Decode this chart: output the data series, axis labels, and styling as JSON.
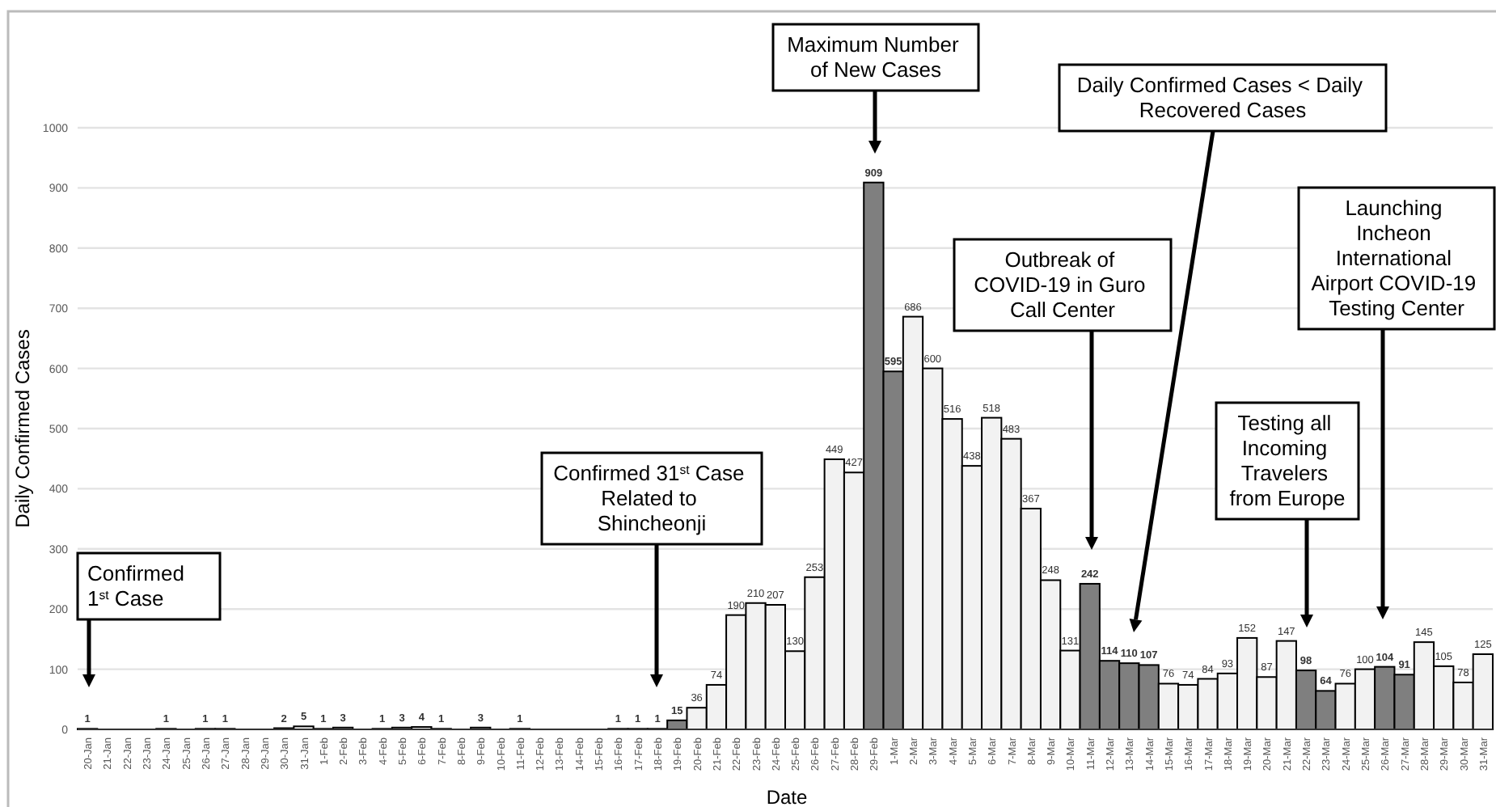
{
  "chart_data": {
    "type": "bar",
    "xlabel": "Date",
    "ylabel": "Daily Confirmed Cases",
    "categories": [
      "20-Jan",
      "21-Jan",
      "22-Jan",
      "23-Jan",
      "24-Jan",
      "25-Jan",
      "26-Jan",
      "27-Jan",
      "28-Jan",
      "29-Jan",
      "30-Jan",
      "31-Jan",
      "1-Feb",
      "2-Feb",
      "3-Feb",
      "4-Feb",
      "5-Feb",
      "6-Feb",
      "7-Feb",
      "8-Feb",
      "9-Feb",
      "10-Feb",
      "11-Feb",
      "12-Feb",
      "13-Feb",
      "14-Feb",
      "15-Feb",
      "16-Feb",
      "17-Feb",
      "18-Feb",
      "19-Feb",
      "20-Feb",
      "21-Feb",
      "22-Feb",
      "23-Feb",
      "24-Feb",
      "25-Feb",
      "26-Feb",
      "27-Feb",
      "28-Feb",
      "29-Feb",
      "1-Mar",
      "2-Mar",
      "3-Mar",
      "4-Mar",
      "5-Mar",
      "6-Mar",
      "7-Mar",
      "8-Mar",
      "9-Mar",
      "10-Mar",
      "11-Mar",
      "12-Mar",
      "13-Mar",
      "14-Mar",
      "15-Mar",
      "16-Mar",
      "17-Mar",
      "18-Mar",
      "19-Mar",
      "20-Mar",
      "21-Mar",
      "22-Mar",
      "23-Mar",
      "24-Mar",
      "25-Mar",
      "26-Mar",
      "27-Mar",
      "28-Mar",
      "29-Mar",
      "30-Mar",
      "31-Mar"
    ],
    "values": [
      1,
      0,
      0,
      0,
      1,
      0,
      1,
      1,
      0,
      0,
      2,
      5,
      1,
      3,
      0,
      1,
      3,
      4,
      1,
      0,
      3,
      0,
      1,
      0,
      0,
      0,
      0,
      1,
      1,
      1,
      15,
      36,
      74,
      190,
      210,
      207,
      130,
      253,
      449,
      427,
      909,
      595,
      686,
      600,
      516,
      438,
      518,
      483,
      367,
      248,
      131,
      242,
      114,
      110,
      107,
      76,
      74,
      84,
      93,
      152,
      87,
      147,
      98,
      64,
      76,
      100,
      104,
      91,
      145,
      105,
      78,
      125
    ],
    "value_labels": [
      "1",
      null,
      null,
      null,
      "1",
      null,
      "1",
      "1",
      null,
      null,
      "2",
      "5",
      "1",
      "3",
      null,
      "1",
      "3",
      "4",
      "1",
      null,
      "3",
      null,
      "1",
      null,
      null,
      null,
      null,
      "1",
      "1",
      "1",
      "15",
      "36",
      "74",
      "190",
      "210",
      "207",
      "130",
      "253",
      "449",
      "427",
      "909",
      "595",
      "686",
      "600",
      "516",
      "438",
      "518",
      "483",
      "367",
      "248",
      "131",
      "242",
      "114",
      "110",
      "107",
      "76",
      "74",
      "84",
      "93",
      "152",
      "87",
      "147",
      "98",
      "64",
      "76",
      "100",
      "104",
      "91",
      "145",
      "105",
      "78",
      "125"
    ],
    "colors": [
      "#f2f2f2",
      "#f2f2f2",
      "#f2f2f2",
      "#f2f2f2",
      "#f2f2f2",
      "#f2f2f2",
      "#f2f2f2",
      "#f2f2f2",
      "#f2f2f2",
      "#f2f2f2",
      "#f2f2f2",
      "#f2f2f2",
      "#f2f2f2",
      "#f2f2f2",
      "#f2f2f2",
      "#f2f2f2",
      "#f2f2f2",
      "#f2f2f2",
      "#f2f2f2",
      "#f2f2f2",
      "#f2f2f2",
      "#f2f2f2",
      "#f2f2f2",
      "#f2f2f2",
      "#f2f2f2",
      "#f2f2f2",
      "#f2f2f2",
      "#f2f2f2",
      "#f2f2f2",
      "#f2f2f2",
      "#7f7f7f",
      "#f2f2f2",
      "#f2f2f2",
      "#f2f2f2",
      "#f2f2f2",
      "#f2f2f2",
      "#f2f2f2",
      "#f2f2f2",
      "#f2f2f2",
      "#f2f2f2",
      "#7f7f7f",
      "#7f7f7f",
      "#f2f2f2",
      "#f2f2f2",
      "#f2f2f2",
      "#f2f2f2",
      "#f2f2f2",
      "#f2f2f2",
      "#f2f2f2",
      "#f2f2f2",
      "#f2f2f2",
      "#7f7f7f",
      "#7f7f7f",
      "#7f7f7f",
      "#7f7f7f",
      "#f2f2f2",
      "#f2f2f2",
      "#f2f2f2",
      "#f2f2f2",
      "#f2f2f2",
      "#f2f2f2",
      "#f2f2f2",
      "#7f7f7f",
      "#7f7f7f",
      "#f2f2f2",
      "#f2f2f2",
      "#7f7f7f",
      "#7f7f7f",
      "#f2f2f2",
      "#f2f2f2",
      "#f2f2f2",
      "#f2f2f2"
    ],
    "ylim": [
      0,
      1000
    ],
    "yticks": [
      0,
      100,
      200,
      300,
      400,
      500,
      600,
      700,
      800,
      900,
      1000
    ],
    "grid": "y",
    "annotations": [
      "Confirmed 1$^{st}$ Case",
      "Confirmed 31$^{st}$ Case Related to Shincheonji",
      "Maximum Number of New Cases",
      "Daily Confirmed Cases < Daily Recovered Cases",
      "Outbreak of COVID-19 in Guro Call Center",
      "Launching Incheon International Airport COVID-19 Testing Center",
      "Testing all Incoming Travelers from Europe"
    ]
  }
}
